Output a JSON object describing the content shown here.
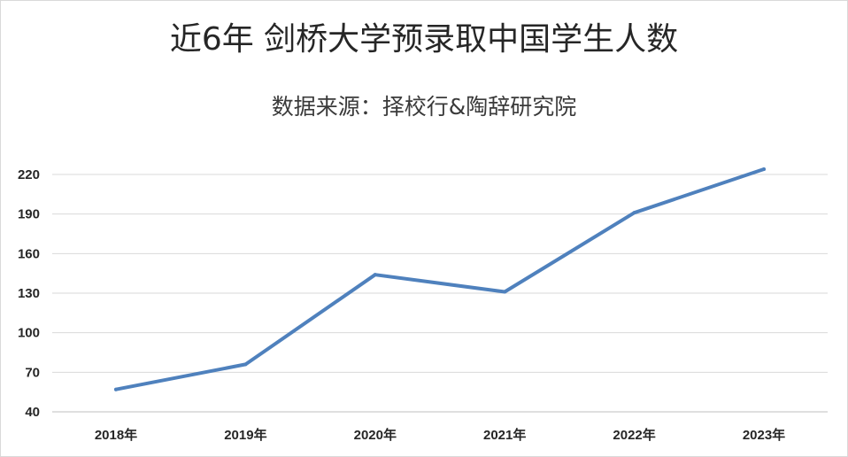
{
  "chart_data": {
    "type": "line",
    "title": "近6年 剑桥大学预录取中国学生人数",
    "subtitle": "数据来源：择校行&陶辞研究院",
    "categories": [
      "2018年",
      "2019年",
      "2020年",
      "2021年",
      "2022年",
      "2023年"
    ],
    "series": [
      {
        "values": [
          57,
          76,
          144,
          131,
          191,
          224
        ]
      }
    ],
    "yticks": [
      40,
      70,
      100,
      130,
      160,
      190,
      220
    ],
    "ylim": [
      40,
      220
    ],
    "grid": true,
    "colors": {
      "line": "#4f81bd",
      "grid": "#d9d9d9",
      "axis": "#bfbfbf"
    }
  }
}
